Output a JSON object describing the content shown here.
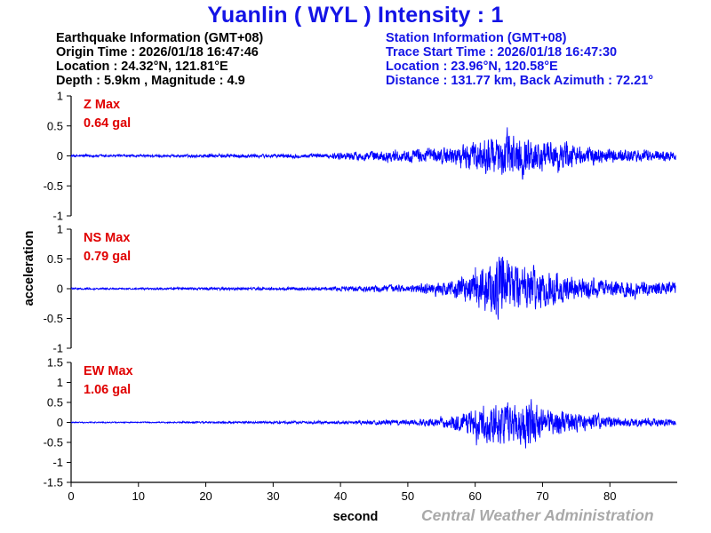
{
  "title": "Yuanlin ( WYL ) Intensity : 1",
  "earthquake": {
    "header": "Earthquake Information (GMT+08)",
    "origin_time": "Origin Time : 2026/01/18 16:47:46",
    "location": "Location : 24.32°N, 121.81°E",
    "depth_magnitude": "Depth : 5.9km , Magnitude : 4.9"
  },
  "station": {
    "header": "Station Information (GMT+08)",
    "trace_start": "Trace Start Time : 2026/01/18 16:47:30",
    "location": "Location : 23.96°N, 120.58°E",
    "distance": "Distance : 131.77 km, Back Azimuth : 72.21°"
  },
  "footer": "Central Weather Administration",
  "colors": {
    "title": "#1414e6",
    "trace": "#0000ff",
    "max_label": "#e00000",
    "footer": "#a9a9a9"
  },
  "chart_data": {
    "type": "line",
    "xlabel": "second",
    "ylabel": "acceleration",
    "xlim": [
      0,
      90
    ],
    "x_ticks": [
      0,
      10,
      20,
      30,
      40,
      50,
      60,
      70,
      80
    ],
    "panels": [
      {
        "component": "Z",
        "max_label": "Z Max",
        "max_value": "0.64 gal",
        "ylim": [
          -1,
          1
        ],
        "y_ticks": [
          -1,
          -0.5,
          0,
          0.5,
          1
        ],
        "y_tick_labels": [
          "-1",
          "-0.5",
          "0",
          "0.5",
          "1"
        ],
        "envelope": {
          "t": [
            0,
            10,
            20,
            38,
            41,
            45,
            50,
            55,
            58,
            60,
            62,
            64,
            66,
            68,
            70,
            72,
            74,
            76,
            80,
            85,
            90
          ],
          "amp": [
            0.03,
            0.03,
            0.04,
            0.05,
            0.1,
            0.12,
            0.15,
            0.18,
            0.25,
            0.35,
            0.45,
            0.5,
            0.6,
            0.45,
            0.38,
            0.35,
            0.3,
            0.22,
            0.18,
            0.15,
            0.12
          ]
        }
      },
      {
        "component": "NS",
        "max_label": "NS Max",
        "max_value": "0.79 gal",
        "ylim": [
          -1,
          1
        ],
        "y_ticks": [
          -1,
          -0.5,
          0,
          0.5,
          1
        ],
        "y_tick_labels": [
          "-1",
          "-0.5",
          "0",
          "0.5",
          "1"
        ],
        "envelope": {
          "t": [
            0,
            10,
            20,
            38,
            41,
            45,
            50,
            55,
            58,
            60,
            62,
            64,
            66,
            68,
            70,
            72,
            74,
            76,
            80,
            85,
            90
          ],
          "amp": [
            0.02,
            0.02,
            0.03,
            0.04,
            0.06,
            0.08,
            0.1,
            0.15,
            0.3,
            0.45,
            0.6,
            0.75,
            0.65,
            0.6,
            0.45,
            0.4,
            0.3,
            0.25,
            0.2,
            0.18,
            0.15
          ]
        }
      },
      {
        "component": "EW",
        "max_label": "EW Max",
        "max_value": "1.06 gal",
        "ylim": [
          -1.5,
          1.5
        ],
        "y_ticks": [
          -1.5,
          -1,
          -0.5,
          0,
          0.5,
          1,
          1.5
        ],
        "y_tick_labels": [
          "-1.5",
          "-1",
          "-0.5",
          "0",
          "0.5",
          "1",
          "1.5"
        ],
        "envelope": {
          "t": [
            0,
            10,
            20,
            38,
            41,
            45,
            50,
            55,
            58,
            60,
            62,
            64,
            66,
            68,
            70,
            72,
            74,
            76,
            80,
            85,
            90
          ],
          "amp": [
            0.02,
            0.02,
            0.03,
            0.05,
            0.06,
            0.08,
            0.1,
            0.15,
            0.35,
            0.6,
            0.7,
            0.75,
            0.8,
            0.9,
            0.55,
            0.45,
            0.4,
            0.3,
            0.2,
            0.15,
            0.12
          ]
        }
      }
    ]
  }
}
